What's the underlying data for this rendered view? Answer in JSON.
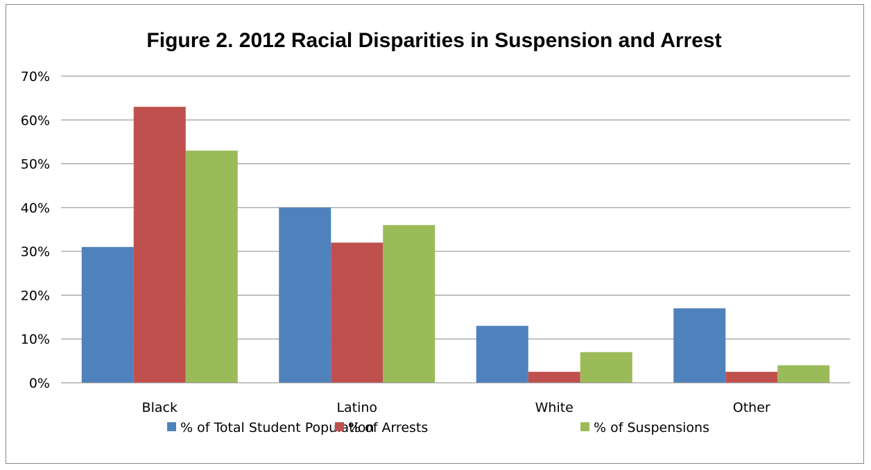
{
  "chart_data": {
    "type": "bar",
    "title": "Figure 2. 2012 Racial Disparities in Suspension and Arrest",
    "xlabel": "",
    "ylabel": "",
    "categories": [
      "Black",
      "Latino",
      "White",
      "Other"
    ],
    "series": [
      {
        "name": "% of Total Student Population",
        "color": "#4F81BD",
        "values": [
          31,
          40,
          13,
          17
        ]
      },
      {
        "name": "% of Arrests",
        "color": "#C0504D",
        "values": [
          63,
          32,
          2.5,
          2.5
        ]
      },
      {
        "name": "% of Suspensions",
        "color": "#9BBB59",
        "values": [
          53,
          36,
          7,
          4
        ]
      }
    ],
    "ylim": [
      0,
      70
    ],
    "yticks": [
      0,
      10,
      20,
      30,
      40,
      50,
      60,
      70
    ],
    "ytick_labels": [
      "0%",
      "10%",
      "20%",
      "30%",
      "40%",
      "50%",
      "60%",
      "70%"
    ],
    "grid": true,
    "legend_position": "bottom"
  }
}
